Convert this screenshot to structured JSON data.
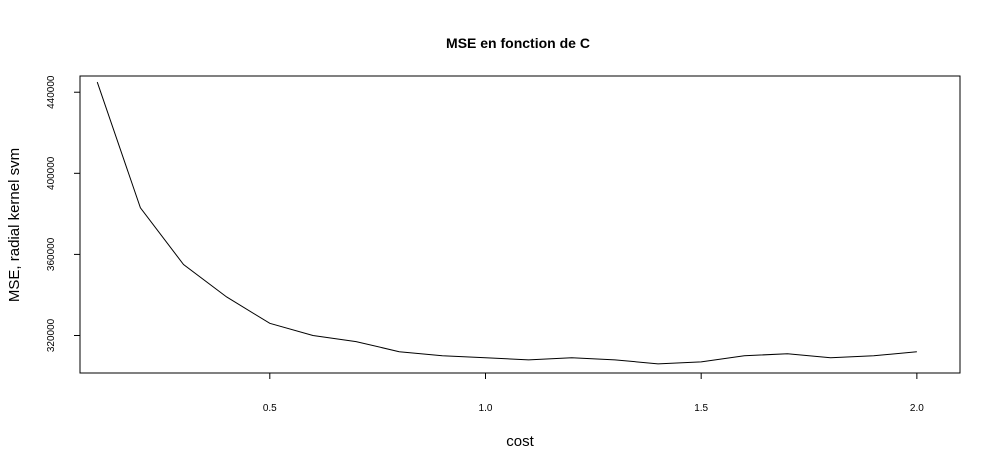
{
  "chart_data": {
    "type": "line",
    "title": "MSE en fonction de C",
    "xlabel": "cost",
    "ylabel": "MSE, radial kernel svm",
    "xlim": [
      0.06,
      2.1
    ],
    "ylim": [
      301500,
      448000
    ],
    "xticks": [
      0.5,
      1.0,
      1.5,
      2.0
    ],
    "xtick_labels": [
      "0.5",
      "1.0",
      "1.5",
      "2.0"
    ],
    "yticks": [
      320000,
      360000,
      400000,
      440000
    ],
    "ytick_labels": [
      "320000",
      "360000",
      "400000",
      "440000"
    ],
    "grid": false,
    "series": [
      {
        "x": [
          0.1,
          0.2,
          0.3,
          0.4,
          0.5,
          0.6,
          0.7,
          0.8,
          0.9,
          1.0,
          1.1,
          1.2,
          1.3,
          1.4,
          1.5,
          1.6,
          1.7,
          1.8,
          1.9,
          2.0
        ],
        "values": [
          445000,
          383000,
          355000,
          339000,
          326000,
          320000,
          317000,
          312000,
          310000,
          309000,
          308000,
          309000,
          308000,
          306000,
          307000,
          310000,
          311000,
          309000,
          310000,
          312000
        ],
        "color": "#000000"
      }
    ]
  }
}
